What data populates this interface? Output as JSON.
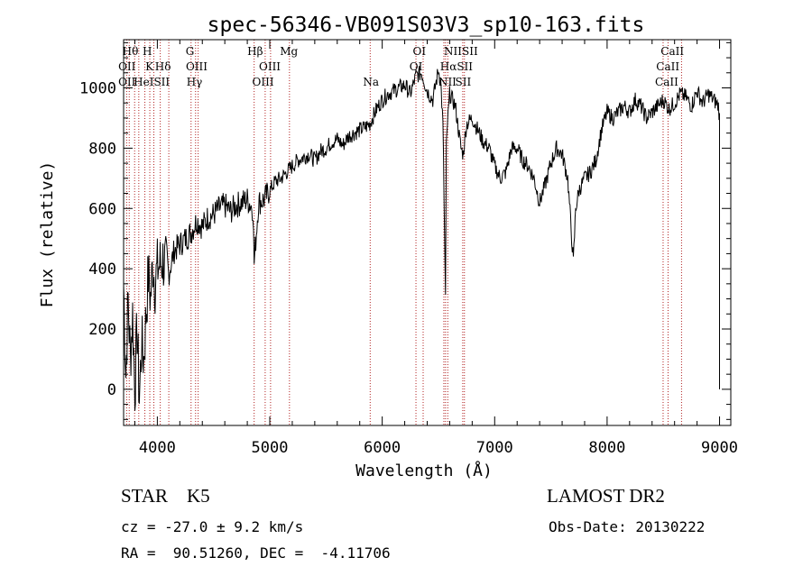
{
  "chart_data": {
    "type": "line",
    "title": "spec-56346-VB091S03V3_sp10-163.fits",
    "xlabel": "Wavelength (Å)",
    "ylabel": "Flux (relative)",
    "xlim": [
      3700,
      9100
    ],
    "ylim": [
      -120,
      1160
    ],
    "xticks": [
      4000,
      5000,
      6000,
      7000,
      8000,
      9000
    ],
    "yticks": [
      0,
      200,
      400,
      600,
      800,
      1000
    ],
    "grid": false,
    "series": [
      {
        "x": [
          3700,
          3720,
          3740,
          3760,
          3780,
          3800,
          3820,
          3840,
          3860,
          3880,
          3900,
          3920,
          3940,
          3960,
          3980,
          4000,
          4050,
          4100,
          4150,
          4200,
          4250,
          4300,
          4350,
          4400,
          4450,
          4500,
          4550,
          4600,
          4650,
          4700,
          4750,
          4800,
          4850,
          4861,
          4900,
          4950,
          5000,
          5050,
          5100,
          5150,
          5200,
          5250,
          5300,
          5350,
          5400,
          5450,
          5500,
          5550,
          5600,
          5650,
          5700,
          5750,
          5800,
          5850,
          5890,
          5900,
          5950,
          6000,
          6050,
          6100,
          6150,
          6200,
          6250,
          6300,
          6350,
          6400,
          6450,
          6500,
          6520,
          6540,
          6555,
          6563,
          6570,
          6580,
          6600,
          6650,
          6700,
          6720,
          6750,
          6800,
          6850,
          6900,
          6950,
          7000,
          7050,
          7100,
          7150,
          7200,
          7250,
          7300,
          7350,
          7400,
          7450,
          7500,
          7550,
          7600,
          7650,
          7700,
          7720,
          7750,
          7800,
          7850,
          7900,
          7950,
          8000,
          8050,
          8100,
          8150,
          8200,
          8250,
          8300,
          8350,
          8400,
          8450,
          8500,
          8550,
          8600,
          8650,
          8700,
          8750,
          8800,
          8850,
          8900,
          8950,
          8990,
          9000,
          9000
        ],
        "y": [
          350,
          50,
          300,
          100,
          250,
          0,
          200,
          -30,
          150,
          100,
          250,
          380,
          300,
          420,
          350,
          400,
          430,
          380,
          460,
          480,
          500,
          520,
          560,
          540,
          570,
          580,
          600,
          610,
          590,
          610,
          620,
          630,
          600,
          420,
          620,
          630,
          660,
          690,
          700,
          720,
          740,
          760,
          770,
          780,
          760,
          790,
          800,
          820,
          830,
          810,
          840,
          850,
          860,
          870,
          880,
          890,
          930,
          960,
          980,
          990,
          1000,
          1010,
          980,
          1040,
          1050,
          990,
          960,
          1060,
          1020,
          880,
          500,
          300,
          800,
          880,
          980,
          940,
          800,
          780,
          880,
          900,
          860,
          820,
          800,
          740,
          700,
          720,
          800,
          800,
          760,
          740,
          700,
          620,
          680,
          750,
          800,
          780,
          700,
          420,
          600,
          660,
          700,
          720,
          760,
          860,
          920,
          900,
          920,
          940,
          920,
          960,
          940,
          900,
          920,
          940,
          960,
          930,
          950,
          980,
          970,
          940,
          990,
          950,
          980,
          960,
          940,
          900,
          0
        ]
      }
    ],
    "line_labels": {
      "top": [
        "Hθ",
        "H",
        "G",
        "Hβ",
        "Mg",
        "OI",
        "NIISII",
        "CaII"
      ],
      "mid": [
        "OII",
        "K",
        "Hδ",
        "OIII",
        "OIII",
        "OI",
        "HαSII",
        "CaII"
      ],
      "bot": [
        "OII",
        "HeISII",
        "Hγ",
        "OIII",
        "Na",
        "NII",
        "SII",
        "CaII"
      ]
    },
    "line_positions": [
      3727,
      3750,
      3798,
      3835,
      3889,
      3933,
      3969,
      4026,
      4102,
      4300,
      4340,
      4363,
      4861,
      4959,
      5007,
      5175,
      5893,
      6300,
      6364,
      6548,
      6563,
      6583,
      6716,
      6731,
      8498,
      8542,
      8662
    ]
  },
  "footer": {
    "object_class": "STAR    K5",
    "survey": "LAMOST DR2",
    "redshift": "cz = -27.0 ± 9.2 km/s",
    "obs_date": "Obs-Date: 20130222",
    "coords": "RA =  90.51260, DEC =  -4.11706"
  }
}
